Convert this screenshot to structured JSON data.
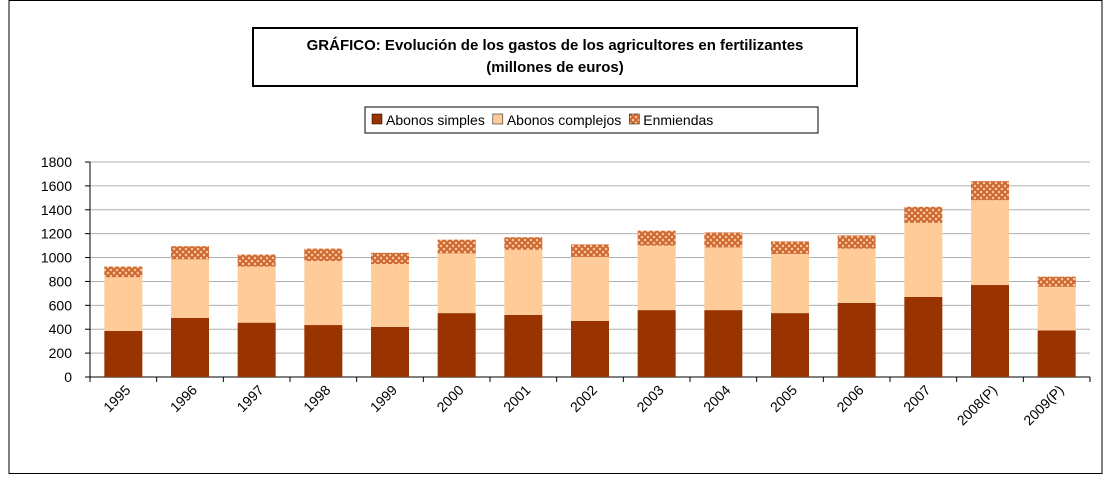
{
  "chart_data": {
    "type": "stacked_bar",
    "title": "GRÁFICO: Evolución de los gastos de los agricultores en fertilizantes",
    "subtitle": "(millones de euros)",
    "categories": [
      "1995",
      "1996",
      "1997",
      "1998",
      "1999",
      "2000",
      "2001",
      "2002",
      "2003",
      "2004",
      "2005",
      "2006",
      "2007",
      "2008(P)",
      "2009(P)"
    ],
    "series": [
      {
        "name": "Abonos simples",
        "color": "#993300",
        "values": [
          385,
          495,
          455,
          435,
          420,
          535,
          520,
          470,
          560,
          560,
          535,
          620,
          670,
          770,
          390
        ]
      },
      {
        "name": "Abonos complejos",
        "color": "#ffcc99",
        "values": [
          450,
          490,
          470,
          535,
          525,
          500,
          545,
          535,
          540,
          525,
          495,
          455,
          620,
          710,
          365
        ]
      },
      {
        "name": "Enmiendas",
        "color": "#cc6633",
        "pattern": "diagonal-cross",
        "values": [
          90,
          110,
          100,
          105,
          95,
          115,
          105,
          105,
          125,
          125,
          105,
          110,
          135,
          160,
          85
        ]
      }
    ],
    "ylim": [
      0,
      1800
    ],
    "yticks": [
      0,
      200,
      400,
      600,
      800,
      1000,
      1200,
      1400,
      1600,
      1800
    ],
    "grid": true,
    "legend": "top"
  }
}
